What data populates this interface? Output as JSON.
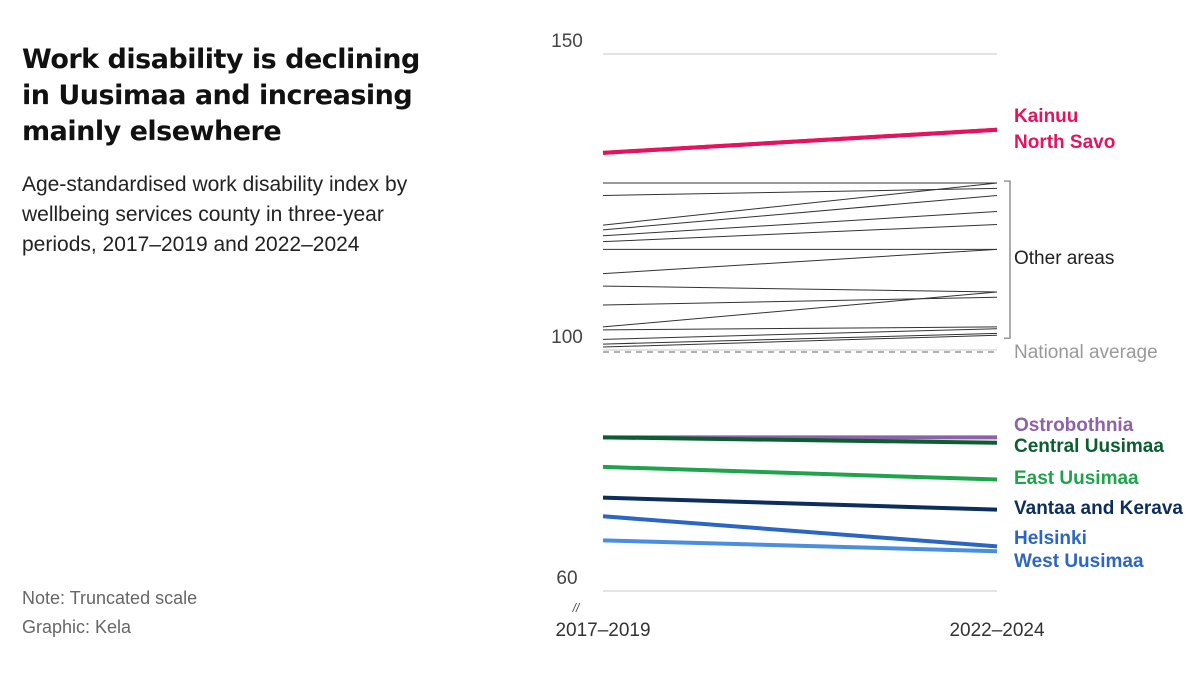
{
  "header": {
    "title": "Work disability is declining in Uusimaa and increasing mainly elsewhere",
    "subtitle": "Age-standardised work disability index by wellbeing services county in three-year periods, 2017–2019 and 2022–2024"
  },
  "footer": {
    "note": "Note: Truncated scale",
    "credit": "Graphic: Kela"
  },
  "chart_data": {
    "type": "line",
    "title": "Work disability is declining in Uusimaa and increasing mainly elsewhere",
    "subtitle": "Age-standardised work disability index by wellbeing services county in three-year periods, 2017–2019 and 2022–2024",
    "x": [
      "2017–2019",
      "2022–2024"
    ],
    "ylim": [
      60,
      150
    ],
    "yticks": [
      60,
      100,
      150
    ],
    "truncated_axis_mark": "//",
    "grid": true,
    "reference_line": {
      "label": "National average",
      "value": 100,
      "style": "dashed",
      "color": "#999999"
    },
    "group_label": "Other areas",
    "series": [
      {
        "name": "Kainuu",
        "values": [
          133.3,
          137.2
        ],
        "color": "#e5135e",
        "highlight": true
      },
      {
        "name": "North Savo",
        "values": [
          133.3,
          137.2
        ],
        "color": "#e5135e",
        "highlight": true
      },
      {
        "name": "",
        "values": [
          128.2,
          128.2
        ],
        "color": "#333333"
      },
      {
        "name": "",
        "values": [
          126.1,
          127.3
        ],
        "color": "#333333"
      },
      {
        "name": "",
        "values": [
          121.1,
          128.2
        ],
        "color": "#333333"
      },
      {
        "name": "",
        "values": [
          120.3,
          126.1
        ],
        "color": "#333333"
      },
      {
        "name": "",
        "values": [
          119.3,
          123.4
        ],
        "color": "#333333"
      },
      {
        "name": "",
        "values": [
          118.3,
          121.2
        ],
        "color": "#333333"
      },
      {
        "name": "",
        "values": [
          117.0,
          117.0
        ],
        "color": "#333333"
      },
      {
        "name": "",
        "values": [
          112.9,
          117.0
        ],
        "color": "#333333"
      },
      {
        "name": "",
        "values": [
          110.8,
          109.8
        ],
        "color": "#333333"
      },
      {
        "name": "",
        "values": [
          107.6,
          108.9
        ],
        "color": "#333333"
      },
      {
        "name": "",
        "values": [
          103.9,
          109.8
        ],
        "color": "#333333"
      },
      {
        "name": "",
        "values": [
          103.4,
          103.9
        ],
        "color": "#333333"
      },
      {
        "name": "",
        "values": [
          101.8,
          103.6
        ],
        "color": "#333333"
      },
      {
        "name": "",
        "values": [
          101.0,
          102.8
        ],
        "color": "#333333"
      },
      {
        "name": "",
        "values": [
          100.5,
          102.5
        ],
        "color": "#333333"
      },
      {
        "name": "Ostrobothnia",
        "values": [
          85.5,
          85.5
        ],
        "color": "#8e62a8",
        "highlight": true
      },
      {
        "name": "Central Uusimaa",
        "values": [
          85.5,
          84.6
        ],
        "color": "#0b5e2f",
        "highlight": true
      },
      {
        "name": "East Uusimaa",
        "values": [
          80.6,
          78.5
        ],
        "color": "#1fa34b",
        "highlight": true
      },
      {
        "name": "Vantaa and Kerava",
        "values": [
          75.5,
          73.5
        ],
        "color": "#0c2e5c",
        "highlight": true
      },
      {
        "name": "Helsinki",
        "values": [
          72.4,
          67.4
        ],
        "color": "#2c66c3",
        "highlight": true
      },
      {
        "name": "West Uusimaa",
        "values": [
          68.4,
          66.6
        ],
        "color": "#4a8ee0",
        "highlight": true
      }
    ],
    "labels": [
      {
        "text": "Kainuu",
        "color": "#e5135e"
      },
      {
        "text": "North Savo",
        "color": "#e5135e"
      },
      {
        "text": "Other areas",
        "color": "#222222"
      },
      {
        "text": "National average",
        "color": "#999999"
      },
      {
        "text": "Ostrobothnia",
        "color": "#8e62a8"
      },
      {
        "text": "Central Uusimaa",
        "color": "#0b5e2f"
      },
      {
        "text": "East Uusimaa",
        "color": "#1fa34b"
      },
      {
        "text": "Vantaa and Kerava",
        "color": "#0c2e5c"
      },
      {
        "text": "Helsinki",
        "color": "#2c66c3"
      },
      {
        "text": "West Uusimaa",
        "color": "#2c66c3"
      }
    ]
  }
}
